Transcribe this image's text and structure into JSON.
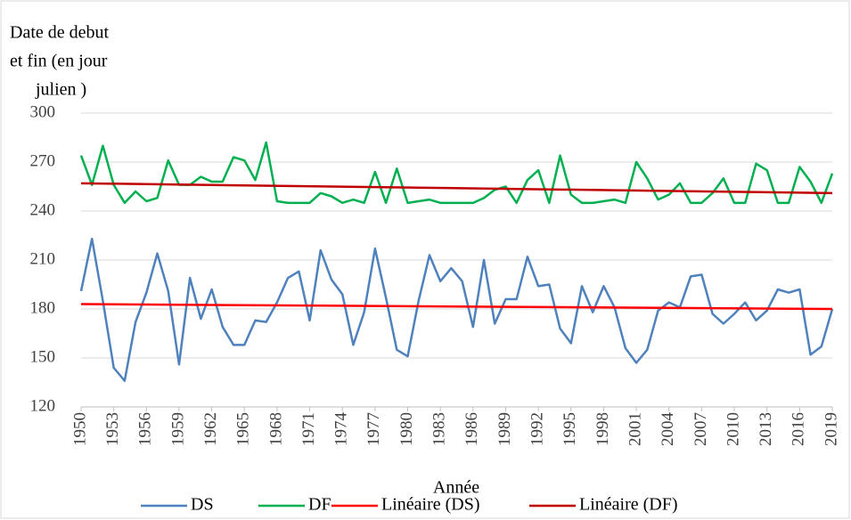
{
  "chart_data": {
    "type": "line",
    "ylabel": [
      "Date de debut",
      "et fin (en  jour",
      "julien )"
    ],
    "xlabel": "Année",
    "x": [
      1950,
      1951,
      1952,
      1953,
      1954,
      1955,
      1956,
      1957,
      1958,
      1959,
      1960,
      1961,
      1962,
      1963,
      1964,
      1965,
      1966,
      1967,
      1968,
      1969,
      1970,
      1971,
      1972,
      1973,
      1974,
      1975,
      1976,
      1977,
      1978,
      1979,
      1980,
      1981,
      1982,
      1983,
      1984,
      1985,
      1986,
      1987,
      1988,
      1989,
      1990,
      1991,
      1992,
      1993,
      1994,
      1995,
      1996,
      1997,
      1998,
      1999,
      2000,
      2001,
      2002,
      2003,
      2004,
      2005,
      2006,
      2007,
      2008,
      2009,
      2010,
      2011,
      2012,
      2013,
      2014,
      2015,
      2016,
      2017,
      2018,
      2019
    ],
    "series": [
      {
        "name": "DS",
        "color": "#4f81bd",
        "values": [
          191,
          223,
          185,
          144,
          136,
          172,
          190,
          214,
          191,
          146,
          199,
          174,
          192,
          169,
          158,
          158,
          173,
          172,
          184,
          199,
          203,
          173,
          216,
          198,
          189,
          158,
          178,
          217,
          187,
          155,
          151,
          185,
          213,
          197,
          205,
          197,
          169,
          210,
          171,
          186,
          186,
          212,
          194,
          195,
          168,
          159,
          194,
          178,
          194,
          181,
          156,
          147,
          155,
          179,
          184,
          181,
          200,
          201,
          177,
          171,
          177,
          184,
          173,
          179,
          192,
          190,
          192,
          152,
          157,
          180
        ]
      },
      {
        "name": "DF",
        "color": "#00b050",
        "values": [
          274,
          256,
          280,
          256,
          245,
          252,
          246,
          248,
          271,
          256,
          256,
          261,
          258,
          258,
          273,
          271,
          259,
          282,
          246,
          245,
          245,
          245,
          251,
          249,
          245,
          247,
          245,
          264,
          245,
          266,
          245,
          246,
          247,
          245,
          245,
          245,
          245,
          248,
          253,
          255,
          245,
          259,
          265,
          245,
          274,
          250,
          245,
          245,
          246,
          247,
          245,
          270,
          260,
          247,
          250,
          257,
          245,
          245,
          251,
          260,
          245,
          245,
          269,
          265,
          245,
          245,
          267,
          258,
          245,
          263
        ]
      },
      {
        "name": "Linéaire (DS)",
        "color": "#ff0000",
        "x": [
          1950,
          2019
        ],
        "values": [
          183,
          180
        ]
      },
      {
        "name": "Linéaire (DF)",
        "color": "#c00000",
        "x": [
          1950,
          2019
        ],
        "values": [
          257,
          251
        ]
      }
    ],
    "xlim": [
      1950,
      2019
    ],
    "xticks": [
      1950,
      1953,
      1956,
      1959,
      1962,
      1965,
      1968,
      1971,
      1974,
      1977,
      1980,
      1983,
      1986,
      1989,
      1992,
      1995,
      1998,
      2001,
      2004,
      2007,
      2010,
      2013,
      2016,
      2019
    ],
    "ylim": [
      120,
      300
    ],
    "yticks": [
      120,
      150,
      180,
      210,
      240,
      270,
      300
    ],
    "grid": true,
    "legend": "bottom"
  }
}
